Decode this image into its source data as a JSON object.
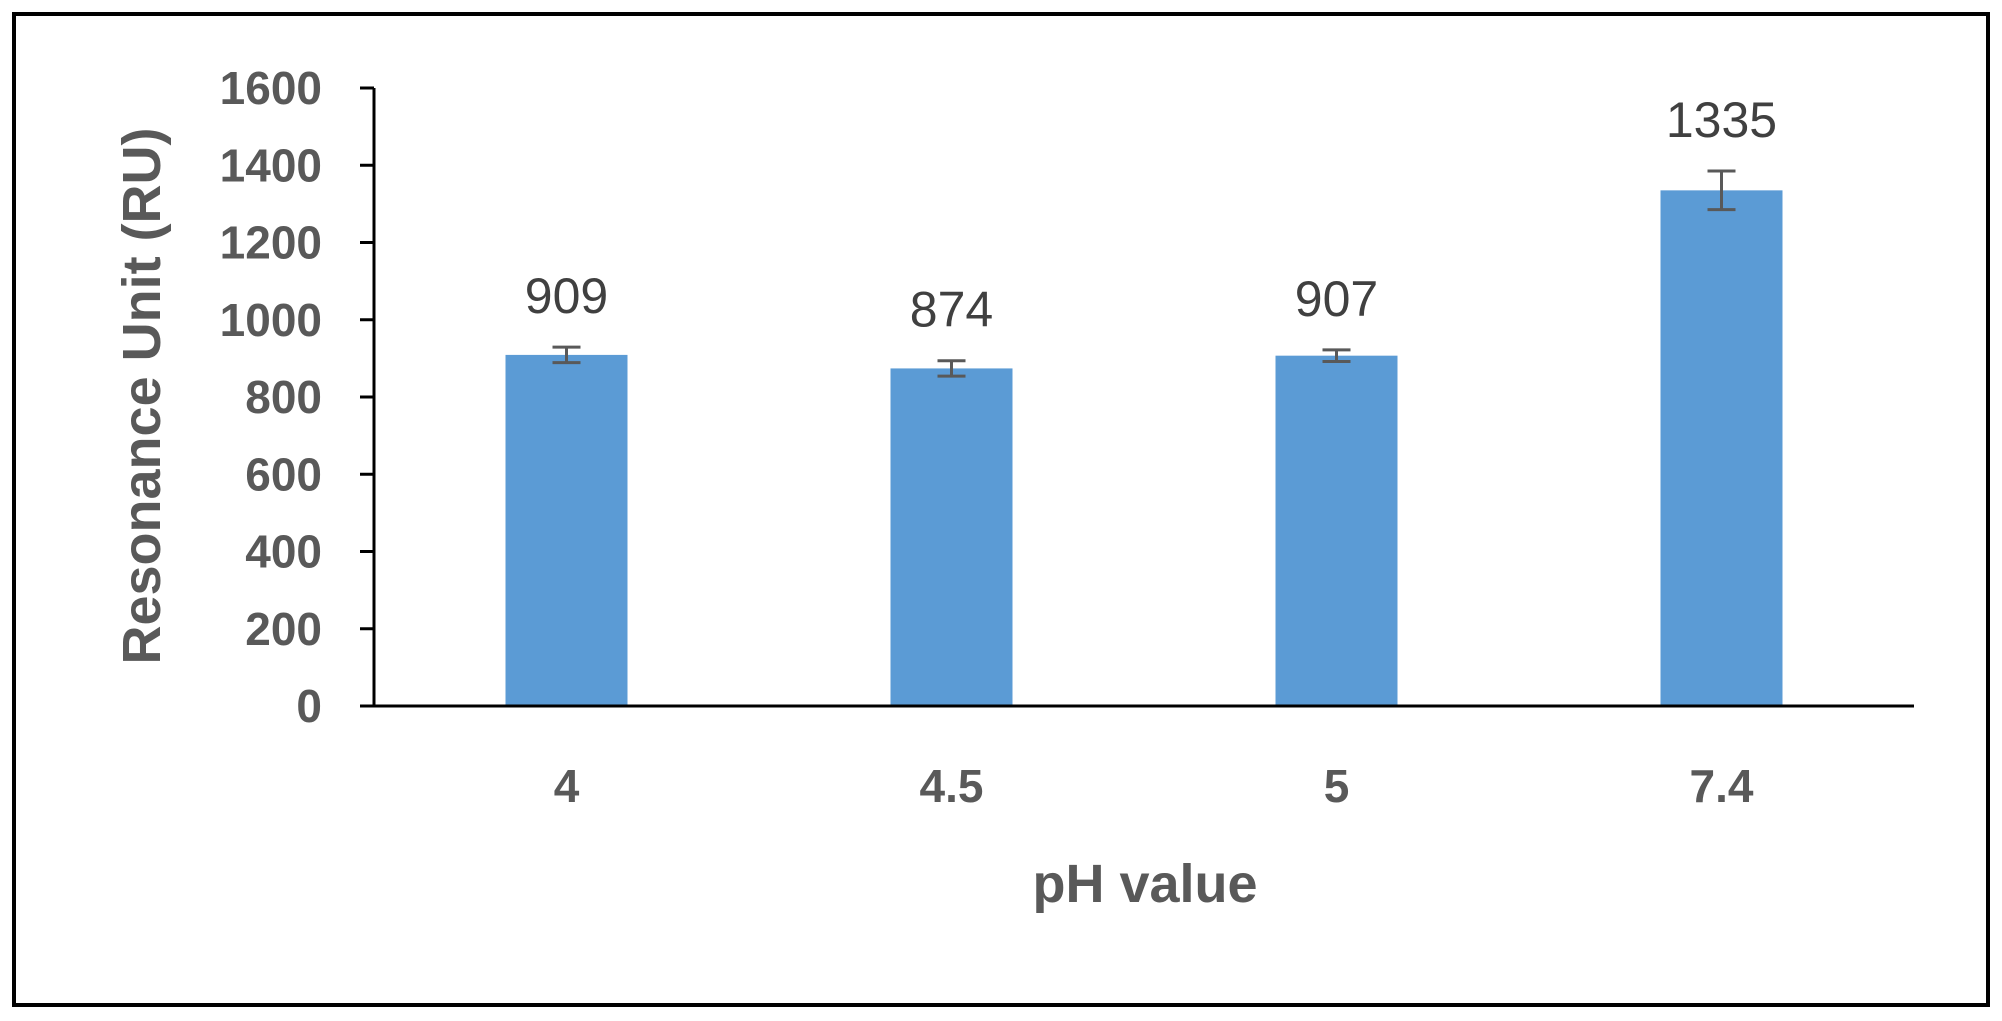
{
  "chart_data": {
    "type": "bar",
    "title": "",
    "xlabel": "pH value",
    "ylabel": "Resonance Unit (RU)",
    "categories": [
      "4",
      "4.5",
      "5",
      "7.4"
    ],
    "values": [
      909,
      874,
      907,
      1335
    ],
    "data_labels": [
      "909",
      "874",
      "907",
      "1335"
    ],
    "error": [
      20,
      20,
      15,
      50
    ],
    "ylim": [
      0,
      1600
    ],
    "yticks": [
      0,
      200,
      400,
      600,
      800,
      1000,
      1200,
      1400,
      1600
    ],
    "ytick_labels": [
      "0",
      "200",
      "400",
      "600",
      "800",
      "1000",
      "1200",
      "1400",
      "1600"
    ],
    "grid": false,
    "legend": "none",
    "bar_color": "#5b9bd5",
    "error_color": "#595959",
    "text_color": "#595959"
  }
}
